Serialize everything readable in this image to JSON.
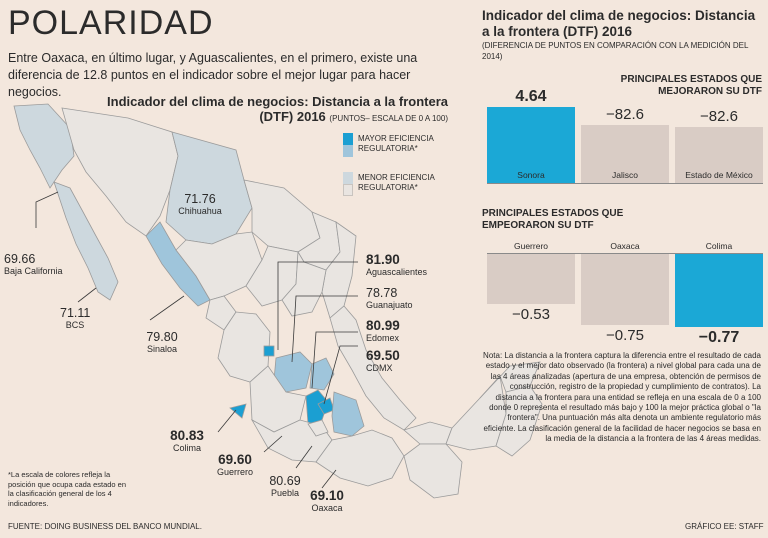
{
  "title": "POLARIDAD",
  "intro": "Entre Oaxaca, en último lugar, y  Aguascalientes, en el primero, existe una diferencia de 12.8 puntos en el indicador sobre el mejor lugar para hacer negocios.",
  "map": {
    "title": "Indicador del clima de negocios: Distancia a la frontera",
    "title_line2": "(DTF) 2016",
    "subtitle": "(PUNTOS– ESCALA DE 0 A 100)",
    "legend": {
      "high": "MAYOR EFICIENCIA REGULATORIA*",
      "low": "MENOR EFICIENCIA REGULATORIA*"
    },
    "colors": {
      "high": "#1b9fd2",
      "mid": "#9fc5db",
      "low": "#cdd8de",
      "gray": "#e9e5e1",
      "outline": "#9b9b9b"
    },
    "labels": [
      {
        "value": "71.76",
        "state": "Chihuahua",
        "bold": false
      },
      {
        "value": "69.66",
        "state": "Baja California",
        "bold": false
      },
      {
        "value": "71.11",
        "state": "BCS",
        "bold": false
      },
      {
        "value": "79.80",
        "state": "Sinaloa",
        "bold": false
      },
      {
        "value": "81.90",
        "state": "Aguascalientes",
        "bold": true
      },
      {
        "value": "78.78",
        "state": "Guanajuato",
        "bold": false
      },
      {
        "value": "80.99",
        "state": "Edomex",
        "bold": true
      },
      {
        "value": "69.50",
        "state": "CDMX",
        "bold": true
      },
      {
        "value": "80.83",
        "state": "Colima",
        "bold": true
      },
      {
        "value": "69.60",
        "state": "Guerrero",
        "bold": true
      },
      {
        "value": "80.69",
        "state": "Puebla",
        "bold": false
      },
      {
        "value": "69.10",
        "state": "Oaxaca",
        "bold": true
      }
    ]
  },
  "right_panel": {
    "title": "Indicador del clima de negocios: Distancia a la frontera (DTF) 2016",
    "subtitle": "(DIFERENCIA DE PUNTOS EN COMPARACIÓN CON LA MEDICIÓN DEL 2014)"
  },
  "chart_data": [
    {
      "type": "bar",
      "title": "PRINCIPALES ESTADOS QUE MEJORARON SU DTF",
      "categories": [
        "Sonora",
        "Jalisco",
        "Estado de México"
      ],
      "values": [
        4.64,
        -82.6,
        -82.6
      ],
      "value_labels": [
        "4.64",
        "−82.6",
        "−82.6"
      ],
      "highlight_index": 0,
      "colors": {
        "highlight": "#1ba8d6",
        "normal": "#d9ccc5"
      }
    },
    {
      "type": "bar",
      "title": "PRINCIPALES ESTADOS QUE EMPEORARON SU DTF",
      "categories": [
        "Guerrero",
        "Oaxaca",
        "Colima"
      ],
      "values": [
        -0.53,
        -0.75,
        -0.77
      ],
      "value_labels": [
        "−0.53",
        "−0.75",
        "−0.77"
      ],
      "highlight_index": 2,
      "colors": {
        "highlight": "#1ba8d6",
        "normal": "#d9ccc5"
      }
    }
  ],
  "note": "Nota: La distancia a la frontera captura la diferencia entre el resultado de cada estado y el mejor dato observado (la frontera) a nivel global para cada una de las 4 áreas analizadas (apertura de una empresa, obtención de permisos de construcción, registro de la propiedad y cumplimiento de contratos). La distancia a la frontera para una entidad se refleja en una escala de 0 a 100 donde 0 representa el resultado más bajo y 100 la mejor práctica global o \"la frontera\". Una puntuación más alta denota un ambiente regulatorio más eficiente. La clasificación general de la facilidad de hacer negocios se basa en la media de la distancia a la frontera de las 4 áreas medidas.",
  "footnote": "*La escala de colores refleja la posición que ocupa cada estado en la clasificación general de los 4 indicadores.",
  "source": "FUENTE: DOING BUSINESS DEL BANCO MUNDIAL.",
  "credit": "GRÁFICO EE: STAFF"
}
